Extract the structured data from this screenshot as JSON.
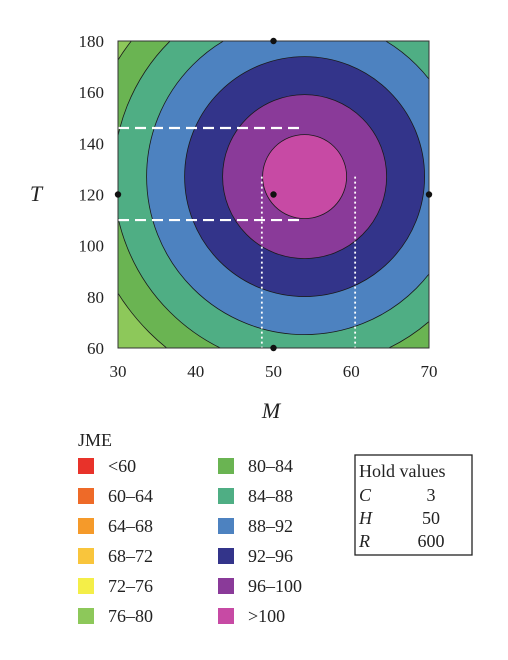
{
  "chart_data": {
    "type": "heatmap",
    "subtype": "filled-contour",
    "xlabel": "M",
    "ylabel": "T",
    "xlim": [
      30,
      70
    ],
    "ylim": [
      60,
      180
    ],
    "xticks": [
      30,
      40,
      50,
      60,
      70
    ],
    "yticks": [
      60,
      80,
      100,
      120,
      140,
      160,
      180
    ],
    "optimum": {
      "x": 54,
      "y": 127
    },
    "design_points": [
      {
        "x": 50,
        "y": 120
      },
      {
        "x": 50,
        "y": 180
      },
      {
        "x": 50,
        "y": 60
      },
      {
        "x": 30,
        "y": 120
      },
      {
        "x": 70,
        "y": 120
      }
    ],
    "guide_lines": {
      "horizontal_y": [
        146,
        110
      ],
      "horizontal_x_end": 54,
      "vertical_x": [
        48.5,
        60.5
      ],
      "vertical_y_top": 127
    },
    "legend": {
      "title": "JME",
      "placement": "bottom-left",
      "entries": [
        {
          "label": "<60",
          "color": "#e8322a"
        },
        {
          "label": "60–64",
          "color": "#ee6a28"
        },
        {
          "label": "64–68",
          "color": "#f59a2a"
        },
        {
          "label": "68–72",
          "color": "#f9c53c"
        },
        {
          "label": "72–76",
          "color": "#f4ee48"
        },
        {
          "label": "76–80",
          "color": "#8dc85a"
        },
        {
          "label": "80–84",
          "color": "#6ab452"
        },
        {
          "label": "84–88",
          "color": "#4fae84"
        },
        {
          "label": "88–92",
          "color": "#4d82c0"
        },
        {
          "label": "92–96",
          "color": "#33348a"
        },
        {
          "label": "96–100",
          "color": "#8a3a99"
        },
        {
          "label": ">100",
          "color": "#c74aa4"
        }
      ]
    },
    "hold_values": {
      "title": "Hold values",
      "items": [
        {
          "name": "C",
          "value": "3"
        },
        {
          "name": "H",
          "value": "50"
        },
        {
          "name": "R",
          "value": "600"
        }
      ]
    }
  }
}
